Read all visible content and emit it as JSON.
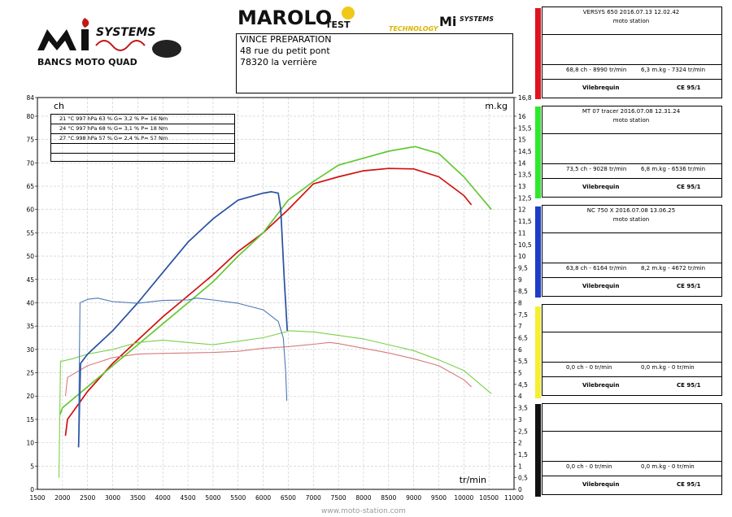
{
  "logo_left": {
    "text_top": "SYSTEMS",
    "text_bottom": "BANCS MOTO QUAD"
  },
  "logo_right": {
    "brand": "MAROLO",
    "brand_sub": "TEST",
    "tech": "TECHNOLOGY",
    "systems": "SYSTEMS"
  },
  "address": [
    "VINCE PREPARATION",
    "48 rue du petit pont",
    "78320 la verrière"
  ],
  "conditions": [
    "21 °C    997 hPa    63  %    G= 3,2 %    P= 16 Nm",
    "24 °C    997 hPa    68  %    G= 3,1 %    P= 18 Nm",
    "27 °C    998 hPa    57  %    G= 2,4 %    P= 57 Nm",
    "",
    ""
  ],
  "panels": [
    {
      "color": "#e0141e",
      "title": "VERSYS 650    2016.07.13 12.02.42",
      "subtitle": "moto station",
      "power": "68,8 ch - 8990 tr/min",
      "torque": "6,3 m.kg - 7324 tr/min",
      "label": "Vilebrequin",
      "norm": "CE 95/1"
    },
    {
      "color": "#2ee82e",
      "title": "MT 07 tracer    2016.07.08 12.31.24",
      "subtitle": "moto station",
      "power": "73,5 ch - 9028 tr/min",
      "torque": "6,8 m.kg - 6536 tr/min",
      "label": "Vilebrequin",
      "norm": "CE 95/1"
    },
    {
      "color": "#1e3cc8",
      "title": "NC 750 X    2016.07.08 13.06.25",
      "subtitle": "moto station",
      "power": "63,8 ch - 6164 tr/min",
      "torque": "8,2 m.kg - 4672 tr/min",
      "label": "Vilebrequin",
      "norm": "CE 95/1"
    },
    {
      "color": "#f5ef32",
      "title": "",
      "subtitle": "",
      "power": "0,0 ch - 0 tr/min",
      "torque": "0,0 m.kg - 0 tr/min",
      "label": "Vilebrequin",
      "norm": "CE 95/1"
    },
    {
      "color": "#111111",
      "title": "",
      "subtitle": "",
      "power": "0,0 ch - 0 tr/min",
      "torque": "0,0 m.kg - 0 tr/min",
      "label": "Vilebrequin",
      "norm": "CE 95/1"
    }
  ],
  "watermark": "www.moto-station.com",
  "chart_data": {
    "type": "line",
    "xlabel": "tr/min",
    "ylabel_left": "ch",
    "ylabel_right": "m.kg",
    "xlim": [
      1500,
      11000
    ],
    "ylim_left": [
      0,
      84
    ],
    "ylim_right": [
      0,
      16.8
    ],
    "grid": true,
    "x_ticks": [
      1500,
      2000,
      2500,
      3000,
      3500,
      4000,
      4500,
      5000,
      5500,
      6000,
      6500,
      7000,
      7500,
      8000,
      8500,
      9000,
      9500,
      10000,
      10500,
      11000
    ],
    "y_ticks_left": [
      0,
      5,
      10,
      15,
      20,
      25,
      30,
      35,
      40,
      45,
      50,
      55,
      60,
      65,
      70,
      75,
      80,
      84
    ],
    "y_ticks_right": [
      "0",
      "0,5",
      "1",
      "1,5",
      "2",
      "2,5",
      "3",
      "3,5",
      "4",
      "4,5",
      "5",
      "5,5",
      "6",
      "6,5",
      "7",
      "7,5",
      "8",
      "8,5",
      "9",
      "9,5",
      "10",
      "10,5",
      "11",
      "11,5",
      "12",
      "12,5",
      "13",
      "13,5",
      "14",
      "14,5",
      "15",
      "15,5",
      "16",
      "16,8"
    ],
    "series": [
      {
        "name": "VERSYS 650",
        "color": "#d01010",
        "kind": "power",
        "x": [
          2060,
          2100,
          2500,
          3000,
          3500,
          4000,
          4500,
          5000,
          5500,
          6000,
          6500,
          7000,
          7500,
          8000,
          8500,
          9000,
          9500,
          10000,
          10150
        ],
        "y": [
          11.5,
          15,
          21,
          27,
          32,
          37,
          41.5,
          46,
          51,
          55,
          60,
          65.5,
          67,
          68.3,
          68.8,
          68.7,
          67,
          63,
          61
        ]
      },
      {
        "name": "VERSYS 650",
        "color": "#d87a7a",
        "kind": "torque",
        "x": [
          2060,
          2100,
          2500,
          3000,
          3500,
          4000,
          4500,
          5000,
          5500,
          6000,
          6500,
          7000,
          7324,
          7500,
          8000,
          8500,
          9000,
          9500,
          10000,
          10150
        ],
        "y": [
          4,
          4.8,
          5.3,
          5.65,
          5.8,
          5.83,
          5.85,
          5.87,
          5.92,
          6.05,
          6.12,
          6.22,
          6.3,
          6.25,
          6.05,
          5.85,
          5.6,
          5.3,
          4.7,
          4.4
        ]
      },
      {
        "name": "MT 07 tracer",
        "color": "#62c832",
        "kind": "power",
        "x": [
          1950,
          2000,
          2500,
          3000,
          3500,
          4000,
          4500,
          5000,
          5500,
          6000,
          6500,
          7000,
          7500,
          8000,
          8500,
          9028,
          9500,
          10000,
          10550
        ],
        "y": [
          16,
          17.5,
          22,
          26.5,
          31,
          35.5,
          40,
          44.5,
          50,
          55,
          62,
          66,
          69.5,
          71,
          72.5,
          73.5,
          72,
          67,
          60
        ]
      },
      {
        "name": "MT 07 tracer",
        "color": "#7ad04a",
        "kind": "torque",
        "x": [
          1930,
          1960,
          2000,
          2200,
          2500,
          3000,
          3500,
          4000,
          4500,
          5000,
          5500,
          6000,
          6536,
          7000,
          7500,
          8000,
          8500,
          9000,
          9500,
          10000,
          10550
        ],
        "y": [
          0.5,
          5.5,
          5.5,
          5.6,
          5.8,
          6.0,
          6.3,
          6.4,
          6.3,
          6.2,
          6.35,
          6.5,
          6.8,
          6.75,
          6.6,
          6.45,
          6.2,
          5.95,
          5.55,
          5.1,
          4.1
        ]
      },
      {
        "name": "NC 750 X",
        "color": "#2850a0",
        "kind": "power",
        "x": [
          2320,
          2360,
          2500,
          3000,
          3500,
          4000,
          4500,
          5000,
          5500,
          6000,
          6164,
          6300,
          6350,
          6420,
          6480
        ],
        "y": [
          9,
          27,
          29,
          34,
          40,
          46.5,
          53,
          58,
          62,
          63.5,
          63.8,
          63.5,
          60,
          45,
          34
        ]
      },
      {
        "name": "NC 750 X",
        "color": "#4a78b8",
        "kind": "torque",
        "x": [
          2320,
          2350,
          2500,
          2700,
          3000,
          3500,
          4000,
          4500,
          4672,
          5000,
          5500,
          6000,
          6300,
          6400,
          6450,
          6470
        ],
        "y": [
          2.5,
          8.0,
          8.15,
          8.2,
          8.05,
          7.98,
          8.1,
          8.12,
          8.2,
          8.12,
          7.98,
          7.7,
          7.2,
          6.5,
          5.0,
          3.8
        ]
      }
    ]
  }
}
